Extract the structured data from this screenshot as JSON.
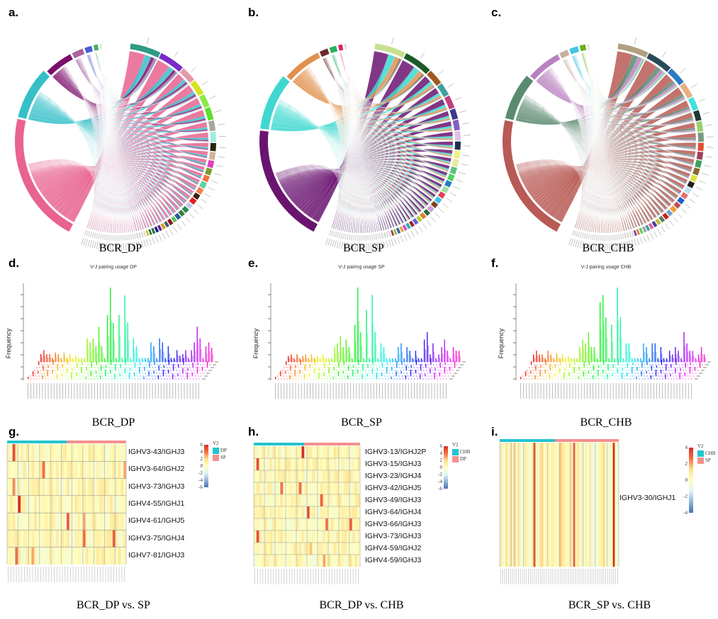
{
  "panel_labels": [
    "a.",
    "b.",
    "c.",
    "d.",
    "e.",
    "f.",
    "g.",
    "h.",
    "i."
  ],
  "captions": {
    "a": "BCR_DP",
    "b": "BCR_SP",
    "c": "BCR_CHB",
    "d": "BCR_DP",
    "e": "BCR_SP",
    "f": "BCR_CHB",
    "g": "BCR_DP vs. SP",
    "h": "BCR_DP vs. CHB",
    "i": "BCR_SP vs. CHB"
  },
  "chart_data": [
    {
      "panel": "a",
      "type": "chord",
      "j_segments": [
        45,
        18,
        10,
        4,
        2.5,
        1.5,
        0.5
      ],
      "j_colors": [
        "#e8638f",
        "#35c0c8",
        "#7b0e6a",
        "#a8649e",
        "#4a5fcf",
        "#4caa6a",
        "#c8e8d0"
      ],
      "v_segments": [
        6,
        5,
        3,
        3,
        2.5,
        2.5,
        2,
        2,
        1.6,
        1.5,
        1.4,
        1.3,
        1.2,
        1.2,
        1.1,
        1,
        1,
        0.9,
        0.9,
        0.8,
        0.8,
        0.7,
        0.7,
        0.6,
        0.6,
        0.5,
        0.5,
        0.5,
        0.4,
        0.4,
        0.3,
        0.3,
        0.3,
        0.3,
        0.2,
        0.2,
        0.2,
        0.2,
        0.2,
        0.2,
        0.2,
        0.2,
        0.2,
        0.2,
        0.2,
        0.2,
        0.2,
        0.2,
        0.2,
        0.2,
        0.2,
        0.2,
        0.2,
        0.2,
        0.2,
        0.2,
        0.2,
        0.2,
        0.2,
        0.2
      ],
      "v_colors": [
        "#2f9a85",
        "#7a2bc8",
        "#e39aa6",
        "#d6e21f",
        "#8ee84a",
        "#58e02a",
        "#a5a89a",
        "#9eeee0",
        "#2a2510",
        "#d4b39a",
        "#e040c0",
        "#7a9a30",
        "#f07040",
        "#60d0a0",
        "#f08050",
        "#3a2010",
        "#e02020",
        "#c0c8f0",
        "#2a8a50",
        "#3a7a40",
        "#2060a0",
        "#60c060",
        "#901020",
        "#406060",
        "#d0a030",
        "#602080",
        "#102080",
        "#407050",
        "#208040",
        "#e0c020"
      ]
    },
    {
      "panel": "b",
      "type": "chord",
      "j_segments": [
        42,
        20,
        14,
        3,
        2.5,
        1.5,
        0.5
      ],
      "j_colors": [
        "#6a1470",
        "#3ed8d0",
        "#e0904e",
        "#6a2a2a",
        "#28b060",
        "#e0206a",
        "#d0d0e0"
      ],
      "v_segments": [
        6,
        5.5,
        3,
        2.5,
        2.5,
        2,
        2,
        1.8,
        1.6,
        1.5,
        1.4,
        1.3,
        1.2,
        1.1,
        1.1,
        1,
        1,
        0.9,
        0.9,
        0.8,
        0.8,
        0.7,
        0.7,
        0.6,
        0.6,
        0.5,
        0.5,
        0.5,
        0.4,
        0.4,
        0.3,
        0.3,
        0.3,
        0.3,
        0.2,
        0.2,
        0.2,
        0.2,
        0.2,
        0.2,
        0.2,
        0.2,
        0.2,
        0.2,
        0.2,
        0.2,
        0.2,
        0.2,
        0.2,
        0.2,
        0.2,
        0.2,
        0.2,
        0.2,
        0.2,
        0.2,
        0.2,
        0.2,
        0.2,
        0.2
      ],
      "v_colors": [
        "#c8e090",
        "#1e5a2a",
        "#a05a20",
        "#40a0a0",
        "#c04080",
        "#3a3a8a",
        "#8060c0",
        "#e0c0e0",
        "#203050",
        "#f0f080",
        "#e8e8a0",
        "#60c080",
        "#50d060",
        "#2080c0",
        "#a0e0a0",
        "#e04060",
        "#40c0e0",
        "#804020",
        "#d0a0e0",
        "#2a6a3a",
        "#e08030",
        "#b0d040",
        "#6060e0",
        "#a02020",
        "#30b0b0",
        "#d040d0",
        "#f0a040",
        "#4060a0",
        "#80c040",
        "#c03060"
      ]
    },
    {
      "panel": "c",
      "type": "chord",
      "j_segments": [
        44,
        16,
        12,
        3,
        3,
        2,
        0.5
      ],
      "j_colors": [
        "#b85a55",
        "#5a8a70",
        "#b882c0",
        "#c8b0a0",
        "#40c8e0",
        "#6ab020",
        "#d8e0d0"
      ],
      "v_segments": [
        6,
        5,
        3.5,
        3,
        2.5,
        2,
        2,
        1.8,
        1.6,
        1.5,
        1.4,
        1.3,
        1.2,
        1.1,
        1.1,
        1,
        1,
        0.9,
        0.9,
        0.8,
        0.8,
        0.7,
        0.7,
        0.6,
        0.6,
        0.5,
        0.5,
        0.5,
        0.4,
        0.4,
        0.3,
        0.3,
        0.3,
        0.3,
        0.2,
        0.2,
        0.2,
        0.2,
        0.2,
        0.2,
        0.2,
        0.2,
        0.2,
        0.2,
        0.2,
        0.2,
        0.2,
        0.2,
        0.2,
        0.2,
        0.2,
        0.2,
        0.2,
        0.2,
        0.2,
        0.2,
        0.2,
        0.2,
        0.2,
        0.2
      ],
      "v_colors": [
        "#b0a080",
        "#2a4a5a",
        "#2a7ac0",
        "#e8b080",
        "#40e0e0",
        "#203a3a",
        "#9ad070",
        "#7a9a80",
        "#e05030",
        "#a04060",
        "#40a060",
        "#8a6a30",
        "#e0e040",
        "#202020",
        "#c0e0f0",
        "#e07070",
        "#2060c0",
        "#c05050",
        "#f0a030",
        "#70a0d0",
        "#d02020",
        "#508060",
        "#c0c040",
        "#4040a0",
        "#e060a0",
        "#30a0a0",
        "#a0a0a0",
        "#60d060",
        "#d08040",
        "#8040a0"
      ]
    },
    {
      "panel": "d",
      "type": "bar",
      "title": "V-J pairing usage DP",
      "ylabel": "Frequency",
      "values": [
        1,
        1.5,
        1,
        1,
        0.5,
        1.2,
        1,
        0.5,
        1.2,
        0.5,
        1,
        0.5,
        0.8,
        0.5,
        0.5,
        0.5,
        3,
        2.5,
        3,
        2,
        4.5,
        2,
        0.5,
        6,
        9.5,
        5,
        0.5,
        6,
        0.5,
        8.5,
        5,
        0.5,
        3,
        2,
        0.5,
        0.5,
        0.5,
        0.5,
        2.5,
        2,
        0.5,
        3,
        2.5,
        0.5,
        2,
        0.5,
        0.5,
        1.5,
        0.8,
        1,
        1.5,
        0.5,
        1.5,
        2.5,
        4.5,
        3,
        0.5,
        2,
        2.5,
        1.8
      ]
    },
    {
      "panel": "e",
      "type": "bar",
      "title": "V-J pairing usage SP",
      "ylabel": "Frequency",
      "values": [
        0.8,
        1,
        0.5,
        1,
        0.5,
        0.8,
        1,
        0.5,
        1,
        0.5,
        0.8,
        0.5,
        1,
        0.5,
        0.5,
        0.5,
        2,
        2.5,
        3.5,
        2,
        3,
        2,
        0.5,
        5,
        10,
        4,
        0.5,
        7,
        0.5,
        9,
        4,
        0.5,
        2.5,
        2,
        0.5,
        0.5,
        0.5,
        0.5,
        2,
        2.5,
        0.5,
        2,
        1.5,
        0.5,
        1.5,
        0.5,
        0.5,
        3,
        4,
        1,
        2.5,
        0.5,
        1,
        2,
        3,
        1.5,
        0.5,
        2,
        1.5,
        1.5
      ]
    },
    {
      "panel": "f",
      "type": "bar",
      "title": "V-J pairing usage CHB",
      "ylabel": "Frequency",
      "values": [
        1,
        1.5,
        1,
        1,
        0.5,
        1.5,
        1,
        0.5,
        1.2,
        0.5,
        1,
        0.5,
        0.8,
        0.5,
        0.5,
        0.5,
        2,
        3,
        2.5,
        4,
        2,
        2,
        0.5,
        8,
        9,
        6,
        0.5,
        5,
        0.5,
        10,
        6,
        0.5,
        2.5,
        2.5,
        0.5,
        0.5,
        0.5,
        0.5,
        2.5,
        2,
        0.5,
        2.5,
        2.5,
        0.5,
        2,
        0.5,
        0.5,
        1.5,
        1,
        2,
        1.5,
        0.5,
        4,
        2.5,
        1.5,
        1.5,
        0.5,
        1,
        2,
        1
      ]
    },
    {
      "panel": "g",
      "type": "heatmap",
      "columns": 44,
      "group_split": 22,
      "rows": [
        "IGHV3-43/IGHJ3",
        "IGHV3-64/IGHJ2",
        "IGHV3-73/IGHJ3",
        "IGHV4-55/IGHJ1",
        "IGHV4-61/IGHJ5",
        "IGHV3-75/IGHJ4",
        "IGHV7-81/IGHJ3"
      ],
      "legend_title": "V2",
      "legend_groups": [
        "DP",
        "SP"
      ],
      "group_colors": [
        "#22c4cf",
        "#f4908c"
      ],
      "scale_ticks": [
        "6",
        "4",
        "2",
        "0",
        "-2",
        "-4",
        "-6"
      ],
      "hot_cells": [
        [
          0,
          2,
          5
        ],
        [
          1,
          13,
          4
        ],
        [
          1,
          43,
          3
        ],
        [
          2,
          2,
          3.5
        ],
        [
          3,
          4,
          6
        ],
        [
          4,
          22,
          4.5
        ],
        [
          4,
          28,
          3
        ],
        [
          5,
          28,
          4
        ],
        [
          5,
          39,
          4.5
        ],
        [
          6,
          3,
          4
        ],
        [
          6,
          9,
          3
        ]
      ]
    },
    {
      "panel": "h",
      "type": "heatmap",
      "columns": 40,
      "group_split": 19,
      "rows": [
        "IGHV3-13/IGHJ2P",
        "IGHV3-15/IGHJ3",
        "IGHV3-23/IGHJ4",
        "IGHV3-42/IGHJ5",
        "IGHV3-49/IGHJ3",
        "IGHV3-64/IGHJ4",
        "IGHV3-66/IGHJ3",
        "IGHV3-73/IGHJ3",
        "IGHV4-59/IGHJ2",
        "IGHV4-59/IGHJ3"
      ],
      "legend_title": "V2",
      "legend_groups": [
        "CHB",
        "DP"
      ],
      "group_colors": [
        "#22c4cf",
        "#f4908c"
      ],
      "scale_ticks": [
        "6",
        "4",
        "2",
        "0",
        "-2",
        "-4",
        "-6"
      ],
      "hot_cells": [
        [
          0,
          18,
          6
        ],
        [
          1,
          1,
          5
        ],
        [
          3,
          10,
          4
        ],
        [
          3,
          17,
          4
        ],
        [
          4,
          25,
          4.5
        ],
        [
          5,
          20,
          5
        ],
        [
          6,
          27,
          4
        ],
        [
          6,
          36,
          4.5
        ],
        [
          7,
          1,
          5
        ],
        [
          8,
          21,
          2.5
        ],
        [
          9,
          26,
          3
        ]
      ]
    },
    {
      "panel": "i",
      "type": "heatmap",
      "columns": 60,
      "group_split": 28,
      "rows": [
        "IGHV3-30/IGHJ1"
      ],
      "legend_title": "V2",
      "legend_groups": [
        "CHB",
        "SP"
      ],
      "group_colors": [
        "#22c4cf",
        "#f4908c"
      ],
      "scale_ticks": [
        "4",
        "2",
        "0",
        "-2",
        "-4"
      ],
      "hot_cells": [
        [
          0,
          17,
          5
        ],
        [
          0,
          37,
          4.5
        ],
        [
          0,
          57,
          6
        ]
      ]
    }
  ]
}
